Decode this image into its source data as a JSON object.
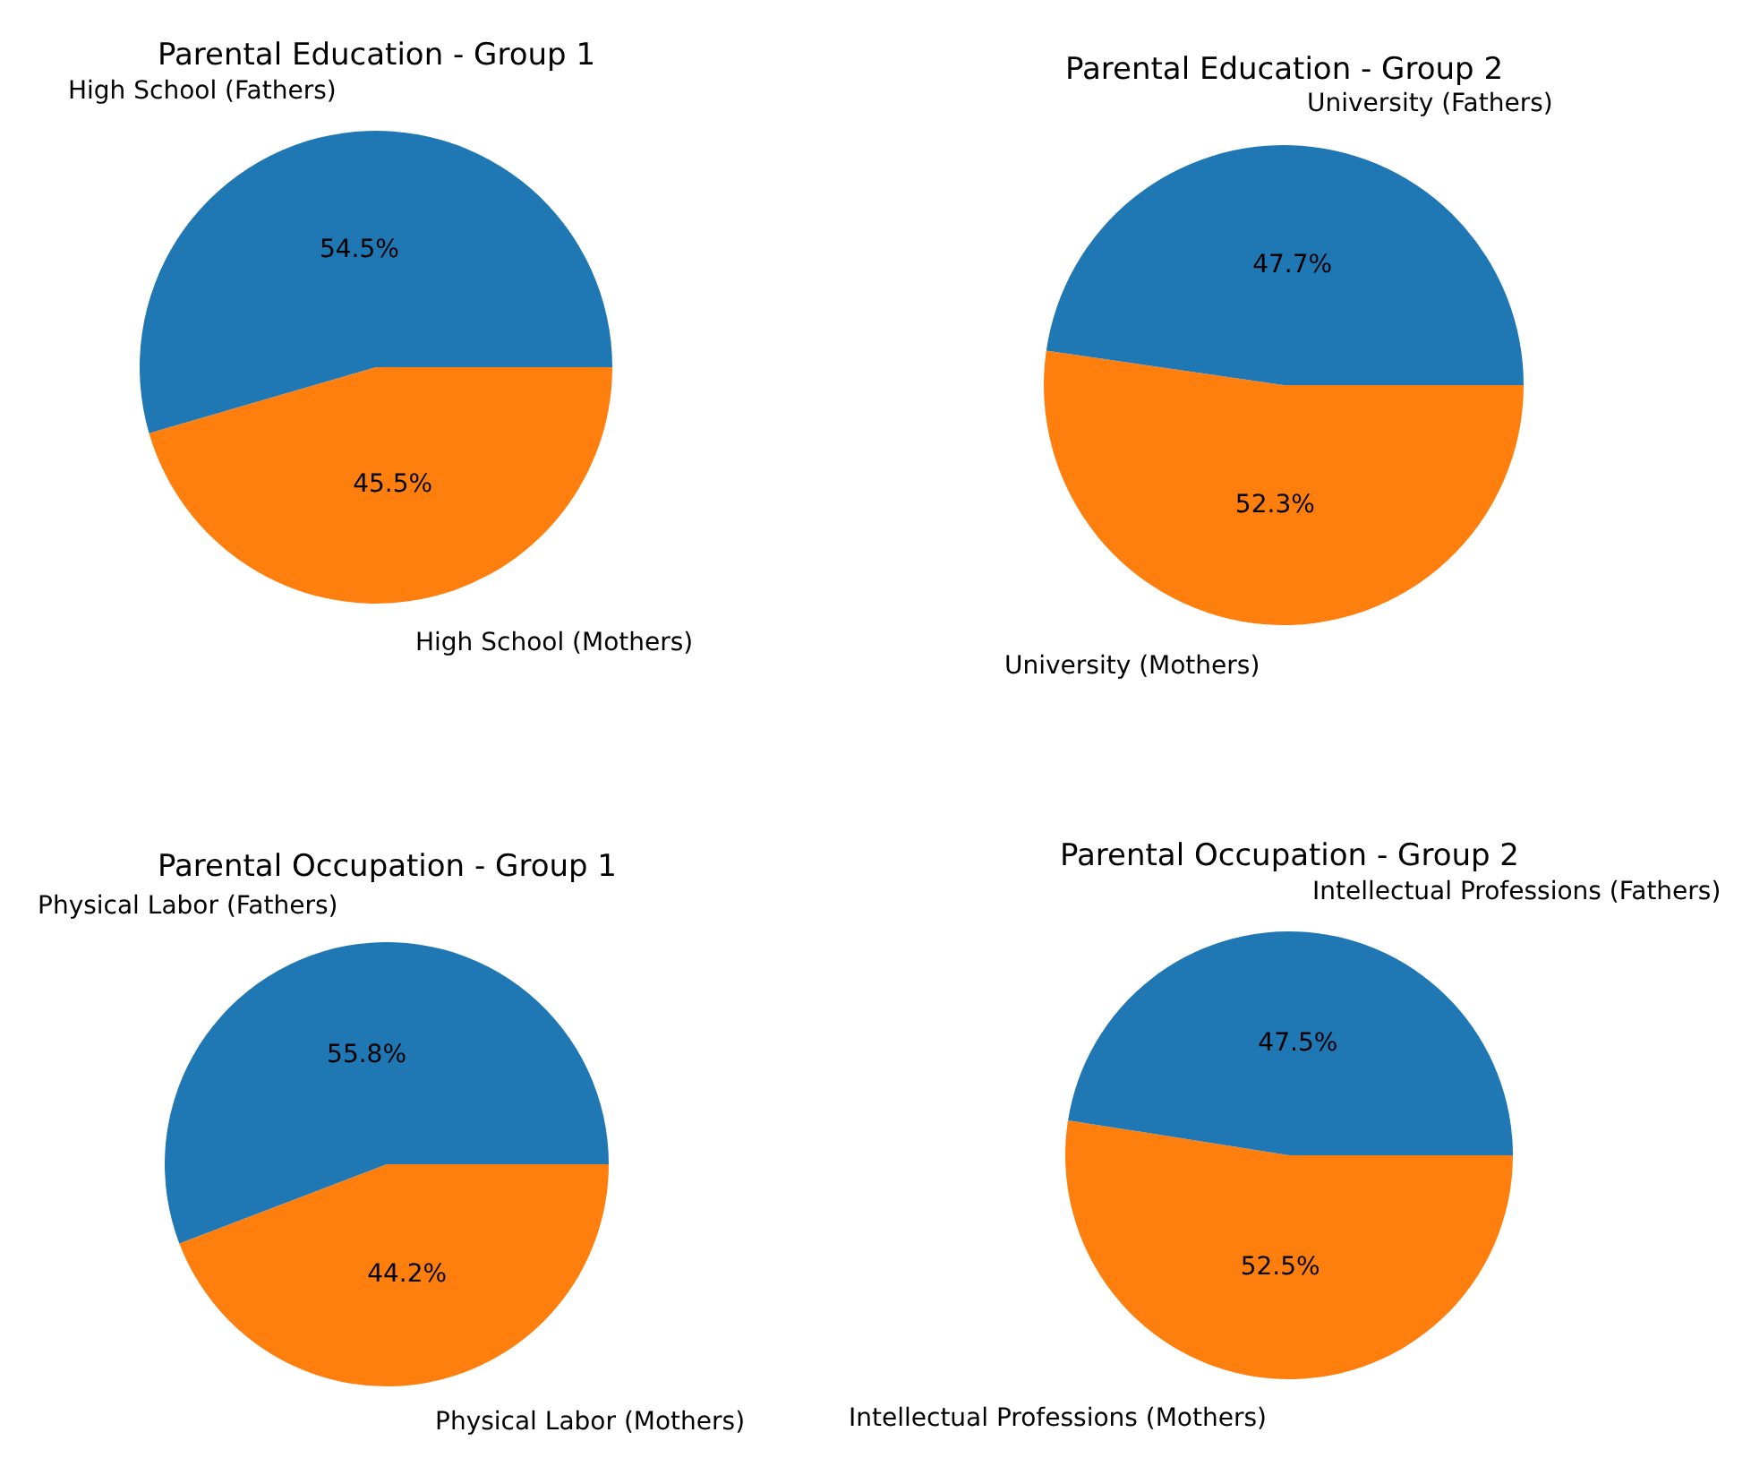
{
  "chart_data": [
    {
      "type": "pie",
      "title": "Parental Education - Group 1",
      "categories": [
        "High School (Fathers)",
        "High School (Mothers)"
      ],
      "values": [
        54.5,
        45.5
      ],
      "colors": [
        "#1f77b4",
        "#ff7f0e"
      ],
      "value_labels": [
        "54.5%",
        "45.5%"
      ]
    },
    {
      "type": "pie",
      "title": "Parental Education - Group 2",
      "categories": [
        "University (Fathers)",
        "University (Mothers)"
      ],
      "values": [
        47.7,
        52.3
      ],
      "colors": [
        "#1f77b4",
        "#ff7f0e"
      ],
      "value_labels": [
        "47.7%",
        "52.3%"
      ]
    },
    {
      "type": "pie",
      "title": "Parental Occupation - Group 1",
      "categories": [
        "Physical Labor (Fathers)",
        "Physical Labor (Mothers)"
      ],
      "values": [
        55.8,
        44.2
      ],
      "colors": [
        "#1f77b4",
        "#ff7f0e"
      ],
      "value_labels": [
        "55.8%",
        "44.2%"
      ]
    },
    {
      "type": "pie",
      "title": "Parental Occupation - Group 2",
      "categories": [
        "Intellectual Professions (Fathers)",
        "Intellectual Professions (Mothers)"
      ],
      "values": [
        47.5,
        52.5
      ],
      "colors": [
        "#1f77b4",
        "#ff7f0e"
      ],
      "value_labels": [
        "47.5%",
        "52.5%"
      ]
    }
  ]
}
